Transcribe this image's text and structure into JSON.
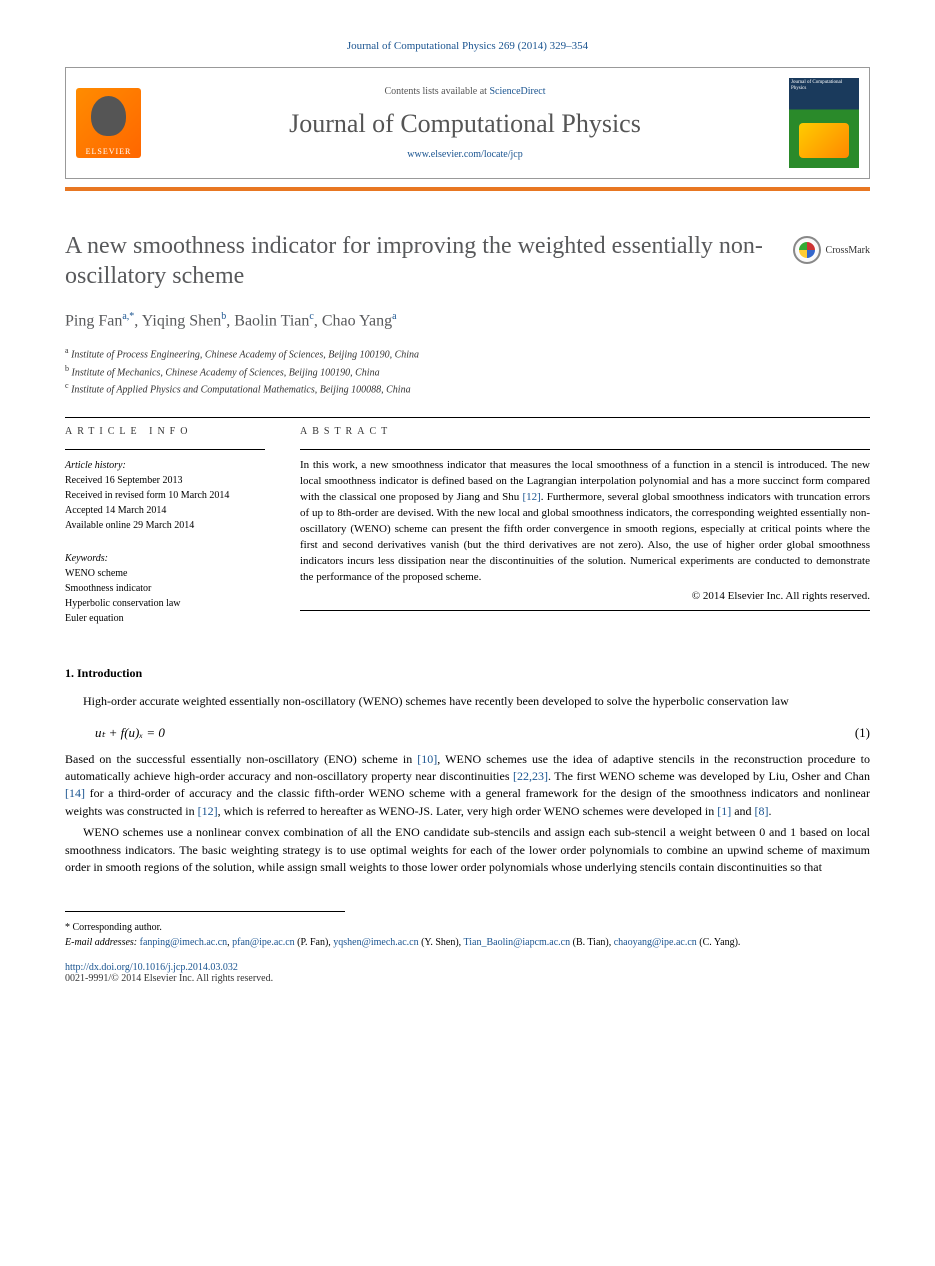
{
  "citation": "Journal of Computational Physics 269 (2014) 329–354",
  "header": {
    "contents_prefix": "Contents lists available at ",
    "contents_link": "ScienceDirect",
    "journal_name": "Journal of Computational Physics",
    "journal_url": "www.elsevier.com/locate/jcp",
    "elsevier_label": "ELSEVIER",
    "cover_label": "Journal of Computational Physics"
  },
  "crossmark": "CrossMark",
  "title": "A new smoothness indicator for improving the weighted essentially non-oscillatory scheme",
  "authors_html": "Ping Fan",
  "authors": [
    {
      "name": "Ping Fan",
      "sup": "a,*"
    },
    {
      "name": "Yiqing Shen",
      "sup": "b"
    },
    {
      "name": "Baolin Tian",
      "sup": "c"
    },
    {
      "name": "Chao Yang",
      "sup": "a"
    }
  ],
  "affiliations": [
    {
      "sup": "a",
      "text": "Institute of Process Engineering, Chinese Academy of Sciences, Beijing 100190, China"
    },
    {
      "sup": "b",
      "text": "Institute of Mechanics, Chinese Academy of Sciences, Beijing 100190, China"
    },
    {
      "sup": "c",
      "text": "Institute of Applied Physics and Computational Mathematics, Beijing 100088, China"
    }
  ],
  "info_heading": "ARTICLE INFO",
  "abstract_heading": "ABSTRACT",
  "history": {
    "label": "Article history:",
    "received": "Received 16 September 2013",
    "revised": "Received in revised form 10 March 2014",
    "accepted": "Accepted 14 March 2014",
    "online": "Available online 29 March 2014"
  },
  "keywords": {
    "label": "Keywords:",
    "items": [
      "WENO scheme",
      "Smoothness indicator",
      "Hyperbolic conservation law",
      "Euler equation"
    ]
  },
  "abstract": {
    "p1a": "In this work, a new smoothness indicator that measures the local smoothness of a function in a stencil is introduced. The new local smoothness indicator is defined based on the Lagrangian interpolation polynomial and has a more succinct form compared with the classical one proposed by Jiang and Shu ",
    "ref12": "[12]",
    "p1b": ". Furthermore, several global smoothness indicators with truncation errors of up to 8th-order are devised. With the new local and global smoothness indicators, the corresponding weighted essentially non-oscillatory (WENO) scheme can present the fifth order convergence in smooth regions, especially at critical points where the first and second derivatives vanish (but the third derivatives are not zero). Also, the use of higher order global smoothness indicators incurs less dissipation near the discontinuities of the solution. Numerical experiments are conducted to demonstrate the performance of the proposed scheme.",
    "copyright": "© 2014 Elsevier Inc. All rights reserved."
  },
  "section1": {
    "title": "1. Introduction",
    "p1": "High-order accurate weighted essentially non-oscillatory (WENO) schemes have recently been developed to solve the hyperbolic conservation law",
    "eq": "u",
    "eq_full": "uₜ + f(u)ₓ = 0",
    "eq_num": "(1)",
    "p2a": "Based on the successful essentially non-oscillatory (ENO) scheme in ",
    "ref10": "[10]",
    "p2b": ", WENO schemes use the idea of adaptive stencils in the reconstruction procedure to automatically achieve high-order accuracy and non-oscillatory property near discontinuities ",
    "ref2223": "[22,23]",
    "p2c": ". The first WENO scheme was developed by Liu, Osher and Chan ",
    "ref14": "[14]",
    "p2d": " for a third-order of accuracy and the classic fifth-order WENO scheme with a general framework for the design of the smoothness indicators and nonlinear weights was constructed in ",
    "ref12b": "[12]",
    "p2e": ", which is referred to hereafter as WENO-JS. Later, very high order WENO schemes were developed in ",
    "ref1": "[1]",
    "p2f": " and ",
    "ref8": "[8]",
    "p2g": ".",
    "p3": "WENO schemes use a nonlinear convex combination of all the ENO candidate sub-stencils and assign each sub-stencil a weight between 0 and 1 based on local smoothness indicators. The basic weighting strategy is to use optimal weights for each of the lower order polynomials to combine an upwind scheme of maximum order in smooth regions of the solution, while assign small weights to those lower order polynomials whose underlying stencils contain discontinuities so that"
  },
  "footnotes": {
    "corr": "* Corresponding author.",
    "email_label": "E-mail addresses:",
    "emails": [
      {
        "addr": "fanping@imech.ac.cn",
        "who": ""
      },
      {
        "addr": "pfan@ipe.ac.cn",
        "who": "(P. Fan)"
      },
      {
        "addr": "yqshen@imech.ac.cn",
        "who": "(Y. Shen)"
      },
      {
        "addr": "Tian_Baolin@iapcm.ac.cn",
        "who": "(B. Tian)"
      },
      {
        "addr": "chaoyang@ipe.ac.cn",
        "who": "(C. Yang)"
      }
    ],
    "doi": "http://dx.doi.org/10.1016/j.jcp.2014.03.032",
    "issn": "0021-9991/© 2014 Elsevier Inc. All rights reserved."
  },
  "colors": {
    "link": "#1a5490",
    "orange_bar": "#e87722",
    "title_gray": "#58595b"
  }
}
